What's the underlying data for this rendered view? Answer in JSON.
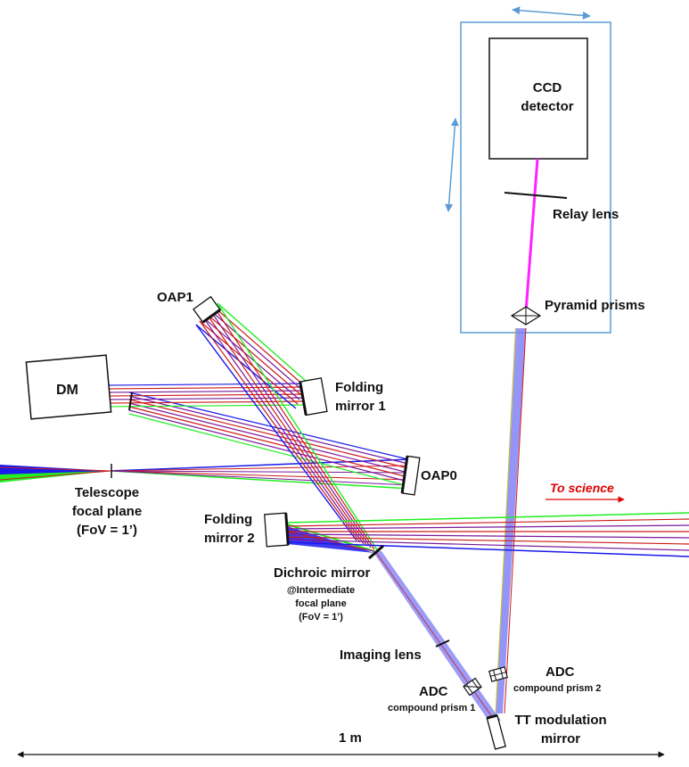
{
  "labels": {
    "ccd": [
      "CCD",
      "detector"
    ],
    "relay_lens": "Relay lens",
    "pyramid_prisms": "Pyramid prisms",
    "oap1": "OAP1",
    "folding_mirror_1": [
      "Folding",
      "mirror 1"
    ],
    "dm": "DM",
    "oap0": "OAP0",
    "telescope_focal_plane": [
      "Telescope",
      "focal plane",
      "(FoV = 1’)"
    ],
    "to_science": "To science",
    "folding_mirror_2": [
      "Folding",
      "mirror 2"
    ],
    "dichroic_mirror": "Dichroic mirror",
    "intermediate_focal_plane": [
      "@Intermediate",
      "focal plane",
      "(FoV = 1’)"
    ],
    "imaging_lens": "Imaging lens",
    "adc1": "ADC",
    "adc1_sub": "compound prism 1",
    "adc2": "ADC",
    "adc2_sub": "compound prism 2",
    "tt_mirror": [
      "TT modulation",
      "mirror"
    ],
    "scale": "1 m"
  },
  "colors": {
    "beam_green": "#22ee22",
    "beam_blue": "#1a1aee",
    "beam_red": "#cc1a1a",
    "beam_purple": "#7a1a9a",
    "pyramid_beam": "#7b7bf5",
    "ccd_beam": "#ff22ff",
    "enclosure": "#5b9bd5",
    "to_science_red": "#e00000"
  }
}
